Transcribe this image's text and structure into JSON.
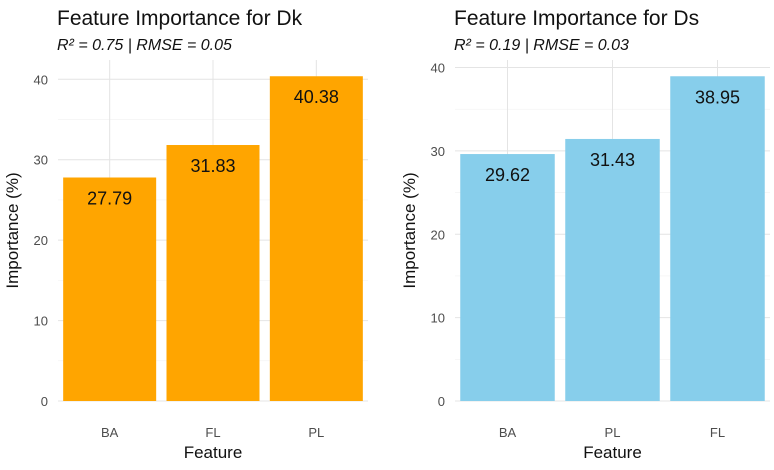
{
  "chart_data": [
    {
      "type": "bar",
      "title": "Feature Importance for Dk",
      "subtitle": "R² = 0.75 | RMSE = 0.05",
      "xlabel": "Feature",
      "ylabel": "Importance (%)",
      "categories": [
        "BA",
        "FL",
        "PL"
      ],
      "values": [
        27.79,
        31.83,
        40.38
      ],
      "value_labels": [
        "27.79",
        "31.83",
        "40.38"
      ],
      "ylim": [
        0,
        42.4
      ],
      "yticks": [
        0,
        10,
        20,
        30,
        40
      ],
      "bar_color": "#FFA500",
      "grid": true,
      "legend": "none"
    },
    {
      "type": "bar",
      "title": "Feature Importance for Ds",
      "subtitle": "R² = 0.19 | RMSE = 0.03",
      "xlabel": "Feature",
      "ylabel": "Importance (%)",
      "categories": [
        "BA",
        "PL",
        "FL"
      ],
      "values": [
        29.62,
        31.43,
        38.95
      ],
      "value_labels": [
        "29.62",
        "31.43",
        "38.95"
      ],
      "ylim": [
        0,
        40.9
      ],
      "yticks": [
        0,
        10,
        20,
        30,
        40
      ],
      "bar_color": "#87CEEB",
      "grid": true,
      "legend": "none"
    }
  ]
}
